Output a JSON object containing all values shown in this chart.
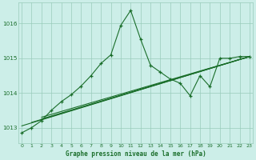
{
  "bg_color": "#cceee8",
  "grid_color": "#99ccbb",
  "line_color": "#1a6e2a",
  "xlabel": "Graphe pression niveau de la mer (hPa)",
  "x_ticks": [
    0,
    1,
    2,
    3,
    4,
    5,
    6,
    7,
    8,
    9,
    10,
    11,
    12,
    13,
    14,
    15,
    16,
    17,
    18,
    19,
    20,
    21,
    22,
    23
  ],
  "y_ticks": [
    1013,
    1014,
    1015,
    1016
  ],
  "ylim": [
    1012.55,
    1016.6
  ],
  "xlim": [
    -0.3,
    23.3
  ],
  "straight_lines": [
    {
      "x": [
        0,
        23
      ],
      "y": [
        1013.05,
        1015.05
      ]
    },
    {
      "x": [
        1,
        23
      ],
      "y": [
        1013.15,
        1015.05
      ]
    },
    {
      "x": [
        2,
        23
      ],
      "y": [
        1013.25,
        1015.05
      ]
    },
    {
      "x": [
        2,
        23
      ],
      "y": [
        1013.3,
        1015.05
      ]
    }
  ],
  "main_x": [
    0,
    1,
    2,
    3,
    4,
    5,
    6,
    7,
    8,
    9,
    10,
    11,
    12,
    13,
    14,
    15,
    16,
    17,
    18,
    19,
    20,
    21,
    22,
    23
  ],
  "main_y": [
    1012.85,
    1013.0,
    1013.2,
    1013.5,
    1013.75,
    1013.95,
    1014.2,
    1014.5,
    1014.85,
    1015.1,
    1015.95,
    1016.38,
    1015.55,
    1014.8,
    1014.6,
    1014.4,
    1014.28,
    1013.92,
    1014.5,
    1014.18,
    1015.0,
    1015.0,
    1015.05,
    1015.05
  ]
}
